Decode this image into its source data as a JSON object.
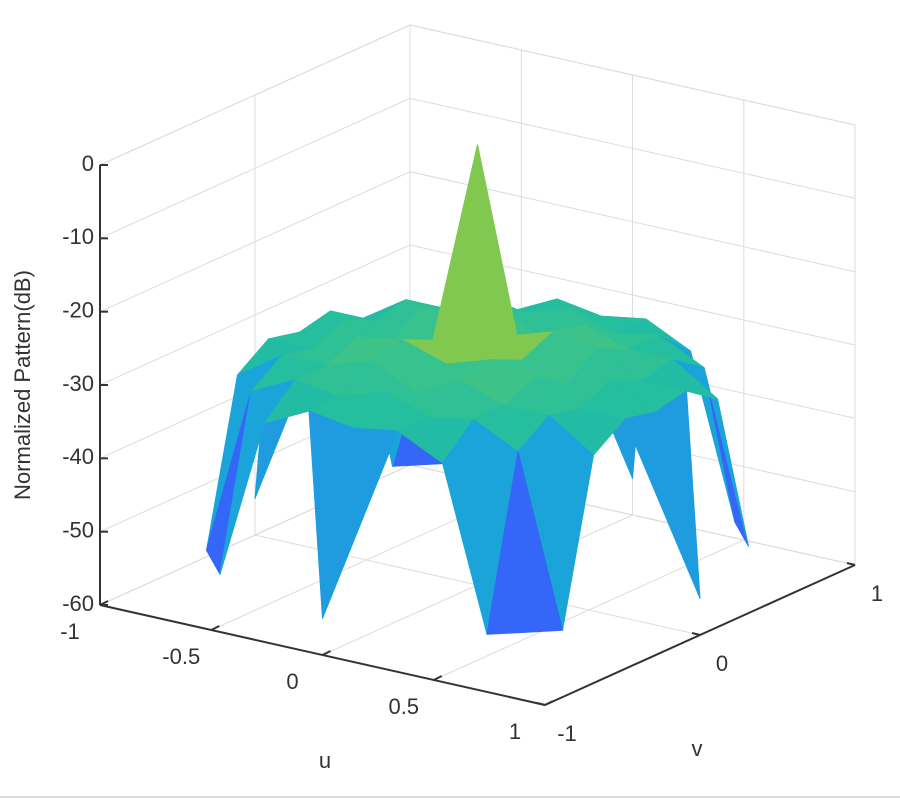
{
  "chart_data": {
    "type": "surface",
    "xlabel": "u",
    "ylabel": "v",
    "zlabel": "Normalized Pattern(dB)",
    "x": [
      -1,
      -0.8,
      -0.6,
      -0.4,
      -0.2,
      0,
      0.2,
      0.4,
      0.6,
      0.8,
      1
    ],
    "y": [
      -1,
      -0.8,
      -0.6,
      -0.4,
      -0.2,
      0,
      0.2,
      0.4,
      0.6,
      0.8,
      1
    ],
    "z": [
      [
        null,
        null,
        null,
        null,
        null,
        -55,
        null,
        null,
        null,
        null,
        null
      ],
      [
        null,
        null,
        -55,
        -33,
        -30,
        -31,
        -30,
        -33,
        -55,
        null,
        null
      ],
      [
        null,
        -55,
        -32,
        -29,
        -30,
        -28,
        -30,
        -29,
        -32,
        -55,
        null
      ],
      [
        null,
        -33,
        -29,
        -29,
        -27,
        -30,
        -27,
        -29,
        -29,
        -33,
        null
      ],
      [
        null,
        -30,
        -30,
        -27,
        -26,
        -28,
        -26,
        -27,
        -30,
        -30,
        null
      ],
      [
        -55,
        -31,
        -28,
        -30,
        -28,
        0,
        -28,
        -30,
        -28,
        -31,
        -55
      ],
      [
        null,
        -30,
        -30,
        -27,
        -26,
        -28,
        -26,
        -27,
        -30,
        -30,
        null
      ],
      [
        null,
        -33,
        -29,
        -29,
        -27,
        -30,
        -27,
        -29,
        -29,
        -33,
        null
      ],
      [
        null,
        -55,
        -32,
        -29,
        -30,
        -28,
        -30,
        -29,
        -32,
        -55,
        null
      ],
      [
        null,
        null,
        -55,
        -33,
        -30,
        -31,
        -30,
        -33,
        -55,
        null,
        null
      ],
      [
        null,
        null,
        null,
        null,
        null,
        -55,
        null,
        null,
        null,
        null,
        null
      ]
    ],
    "xlim": [
      -1,
      1
    ],
    "xticks": [
      -1,
      -0.5,
      0,
      0.5,
      1
    ],
    "ylim": [
      -1,
      1
    ],
    "yticks": [
      -1,
      0,
      1
    ],
    "zlim": [
      -60,
      0
    ],
    "zticks": [
      -60,
      -50,
      -40,
      -30,
      -20,
      -10,
      0
    ],
    "grid": true,
    "colormap": [
      "#3e26a8",
      "#4743f8",
      "#2c76f6",
      "#1ba3db",
      "#23bea0",
      "#69cb5f",
      "#c3c02b",
      "#fdb93b",
      "#f9e322"
    ]
  }
}
